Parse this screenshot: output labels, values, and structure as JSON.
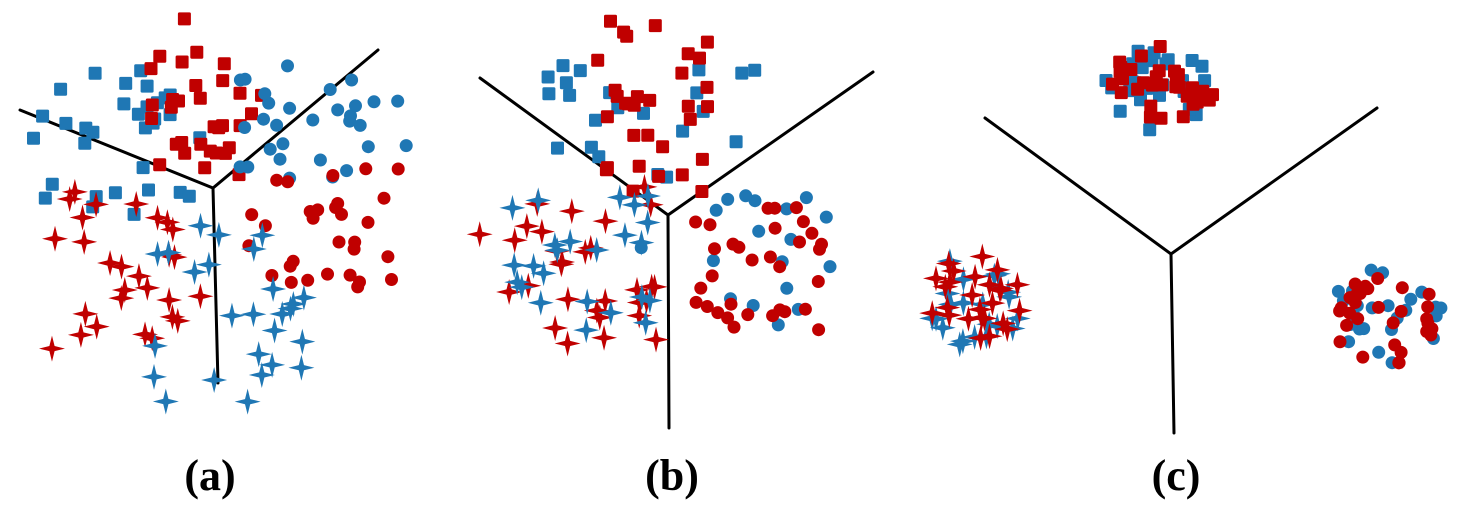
{
  "figure": {
    "labels": [
      "(a)",
      "(b)",
      "(c)"
    ],
    "colors": {
      "red": "#c00000",
      "blue": "#1f77b4",
      "line": "#000000"
    },
    "marker_kinds": [
      "square",
      "circle",
      "star"
    ],
    "panels": [
      {
        "id": "a",
        "description_key": "unaligned-domains"
      },
      {
        "id": "b",
        "description_key": "partially-aligned-domains"
      },
      {
        "id": "c",
        "description_key": "aligned-domains"
      }
    ]
  }
}
